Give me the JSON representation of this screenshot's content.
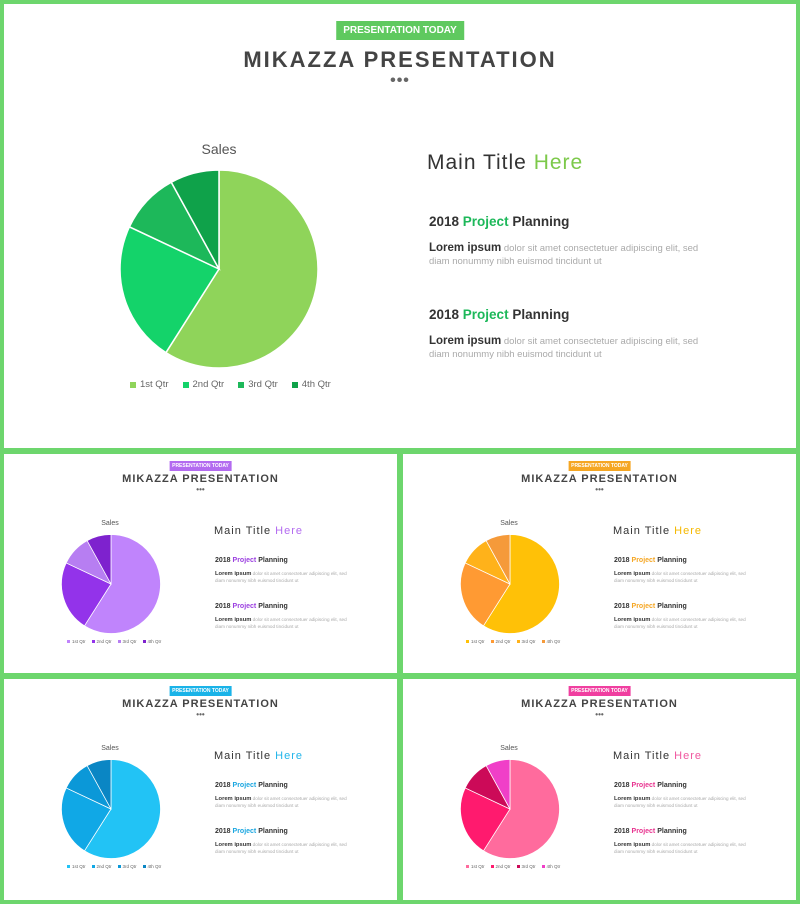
{
  "slides": [
    {
      "id": "main",
      "badge": "PRESENTATION TODAY",
      "title": "MIKAZZA PRESENTATION",
      "dots": "•••",
      "accent": "#5fc95f",
      "main_title_a": "Main Title ",
      "main_title_b": "Here",
      "section_1": {
        "year": "2018 ",
        "highlight": "Project",
        "rest": " Planning",
        "lead": "Lorem ipsum",
        "body": " dolor sit amet consectetuer adipiscing elit, sed diam nonummy  nibh euismod tincidunt ut"
      },
      "section_2": {
        "year": "2018 ",
        "highlight": "Project",
        "rest": " Planning",
        "lead": "Lorem ipsum",
        "body": " dolor sit amet consectetuer adipiscing elit, sed diam nonummy  nibh euismod tincidunt ut"
      },
      "palette": [
        "#8fd45a",
        "#14d36a",
        "#1db85a",
        "#0fa24a"
      ],
      "highlight_color": "#1db85a",
      "here_color": "#7cc94a"
    },
    {
      "id": "purple",
      "badge": "PRESENTATION TODAY",
      "title": "MIKAZZA PRESENTATION",
      "dots": "•••",
      "accent": "#b36bf0",
      "main_title_a": "Main Title ",
      "main_title_b": "Here",
      "section_1": {
        "year": "2018 ",
        "highlight": "Project",
        "rest": " Planning",
        "lead": "Lorem ipsum",
        "body": " dolor sit amet consectetuer adipiscing elit, sed diam nonummy  nibh euismod tincidunt ut"
      },
      "section_2": {
        "year": "2018 ",
        "highlight": "Project",
        "rest": " Planning",
        "lead": "Lorem ipsum",
        "body": " dolor sit amet consectetuer adipiscing elit, sed diam nonummy  nibh euismod tincidunt ut"
      },
      "palette": [
        "#c084fc",
        "#9333ea",
        "#b77ef2",
        "#7e22ce"
      ],
      "highlight_color": "#9b3fe0",
      "here_color": "#b36bf0"
    },
    {
      "id": "orange",
      "badge": "PRESENTATION TODAY",
      "title": "MIKAZZA PRESENTATION",
      "dots": "•••",
      "accent": "#f5a623",
      "main_title_a": "Main Title ",
      "main_title_b": "Here",
      "section_1": {
        "year": "2018 ",
        "highlight": "Project",
        "rest": " Planning",
        "lead": "Lorem ipsum",
        "body": " dolor sit amet consectetuer adipiscing elit, sed diam nonummy  nibh euismod tincidunt ut"
      },
      "section_2": {
        "year": "2018 ",
        "highlight": "Project",
        "rest": " Planning",
        "lead": "Lorem ipsum",
        "body": " dolor sit amet consectetuer adipiscing elit, sed diam nonummy  nibh euismod tincidunt ut"
      },
      "palette": [
        "#ffc107",
        "#ff9a33",
        "#ffb21a",
        "#f59a3a"
      ],
      "highlight_color": "#f5a623",
      "here_color": "#f5b800"
    },
    {
      "id": "blue",
      "badge": "PRESENTATION TODAY",
      "title": "MIKAZZA PRESENTATION",
      "dots": "•••",
      "accent": "#1ab3e8",
      "main_title_a": "Main Title ",
      "main_title_b": "Here",
      "section_1": {
        "year": "2018 ",
        "highlight": "Project",
        "rest": " Planning",
        "lead": "Lorem ipsum",
        "body": " dolor sit amet consectetuer adipiscing elit, sed diam nonummy  nibh euismod tincidunt ut"
      },
      "section_2": {
        "year": "2018 ",
        "highlight": "Project",
        "rest": " Planning",
        "lead": "Lorem ipsum",
        "body": " dolor sit amet consectetuer adipiscing elit, sed diam nonummy  nibh euismod tincidunt ut"
      },
      "palette": [
        "#22c3f5",
        "#10a8e6",
        "#0b98d8",
        "#0a86c4"
      ],
      "highlight_color": "#1aa6e0",
      "here_color": "#22b5ea"
    },
    {
      "id": "pink",
      "badge": "PRESENTATION TODAY",
      "title": "MIKAZZA PRESENTATION",
      "dots": "•••",
      "accent": "#f03fa0",
      "main_title_a": "Main Title ",
      "main_title_b": "Here",
      "section_1": {
        "year": "2018 ",
        "highlight": "Project",
        "rest": " Planning",
        "lead": "Lorem ipsum",
        "body": " dolor sit amet consectetuer adipiscing elit, sed diam nonummy  nibh euismod tincidunt ut"
      },
      "section_2": {
        "year": "2018 ",
        "highlight": "Project",
        "rest": " Planning",
        "lead": "Lorem ipsum",
        "body": " dolor sit amet consectetuer adipiscing elit, sed diam nonummy  nibh euismod tincidunt ut"
      },
      "palette": [
        "#ff6b9d",
        "#ff1a6e",
        "#cc0a58",
        "#f03fc8"
      ],
      "highlight_color": "#e8338f",
      "here_color": "#f0579f"
    }
  ],
  "chart_data": {
    "type": "pie",
    "title": "Sales",
    "categories": [
      "1st Qtr",
      "2nd Qtr",
      "3rd Qtr",
      "4th Qtr"
    ],
    "values": [
      59,
      23,
      10,
      8
    ],
    "legend_position": "bottom"
  }
}
